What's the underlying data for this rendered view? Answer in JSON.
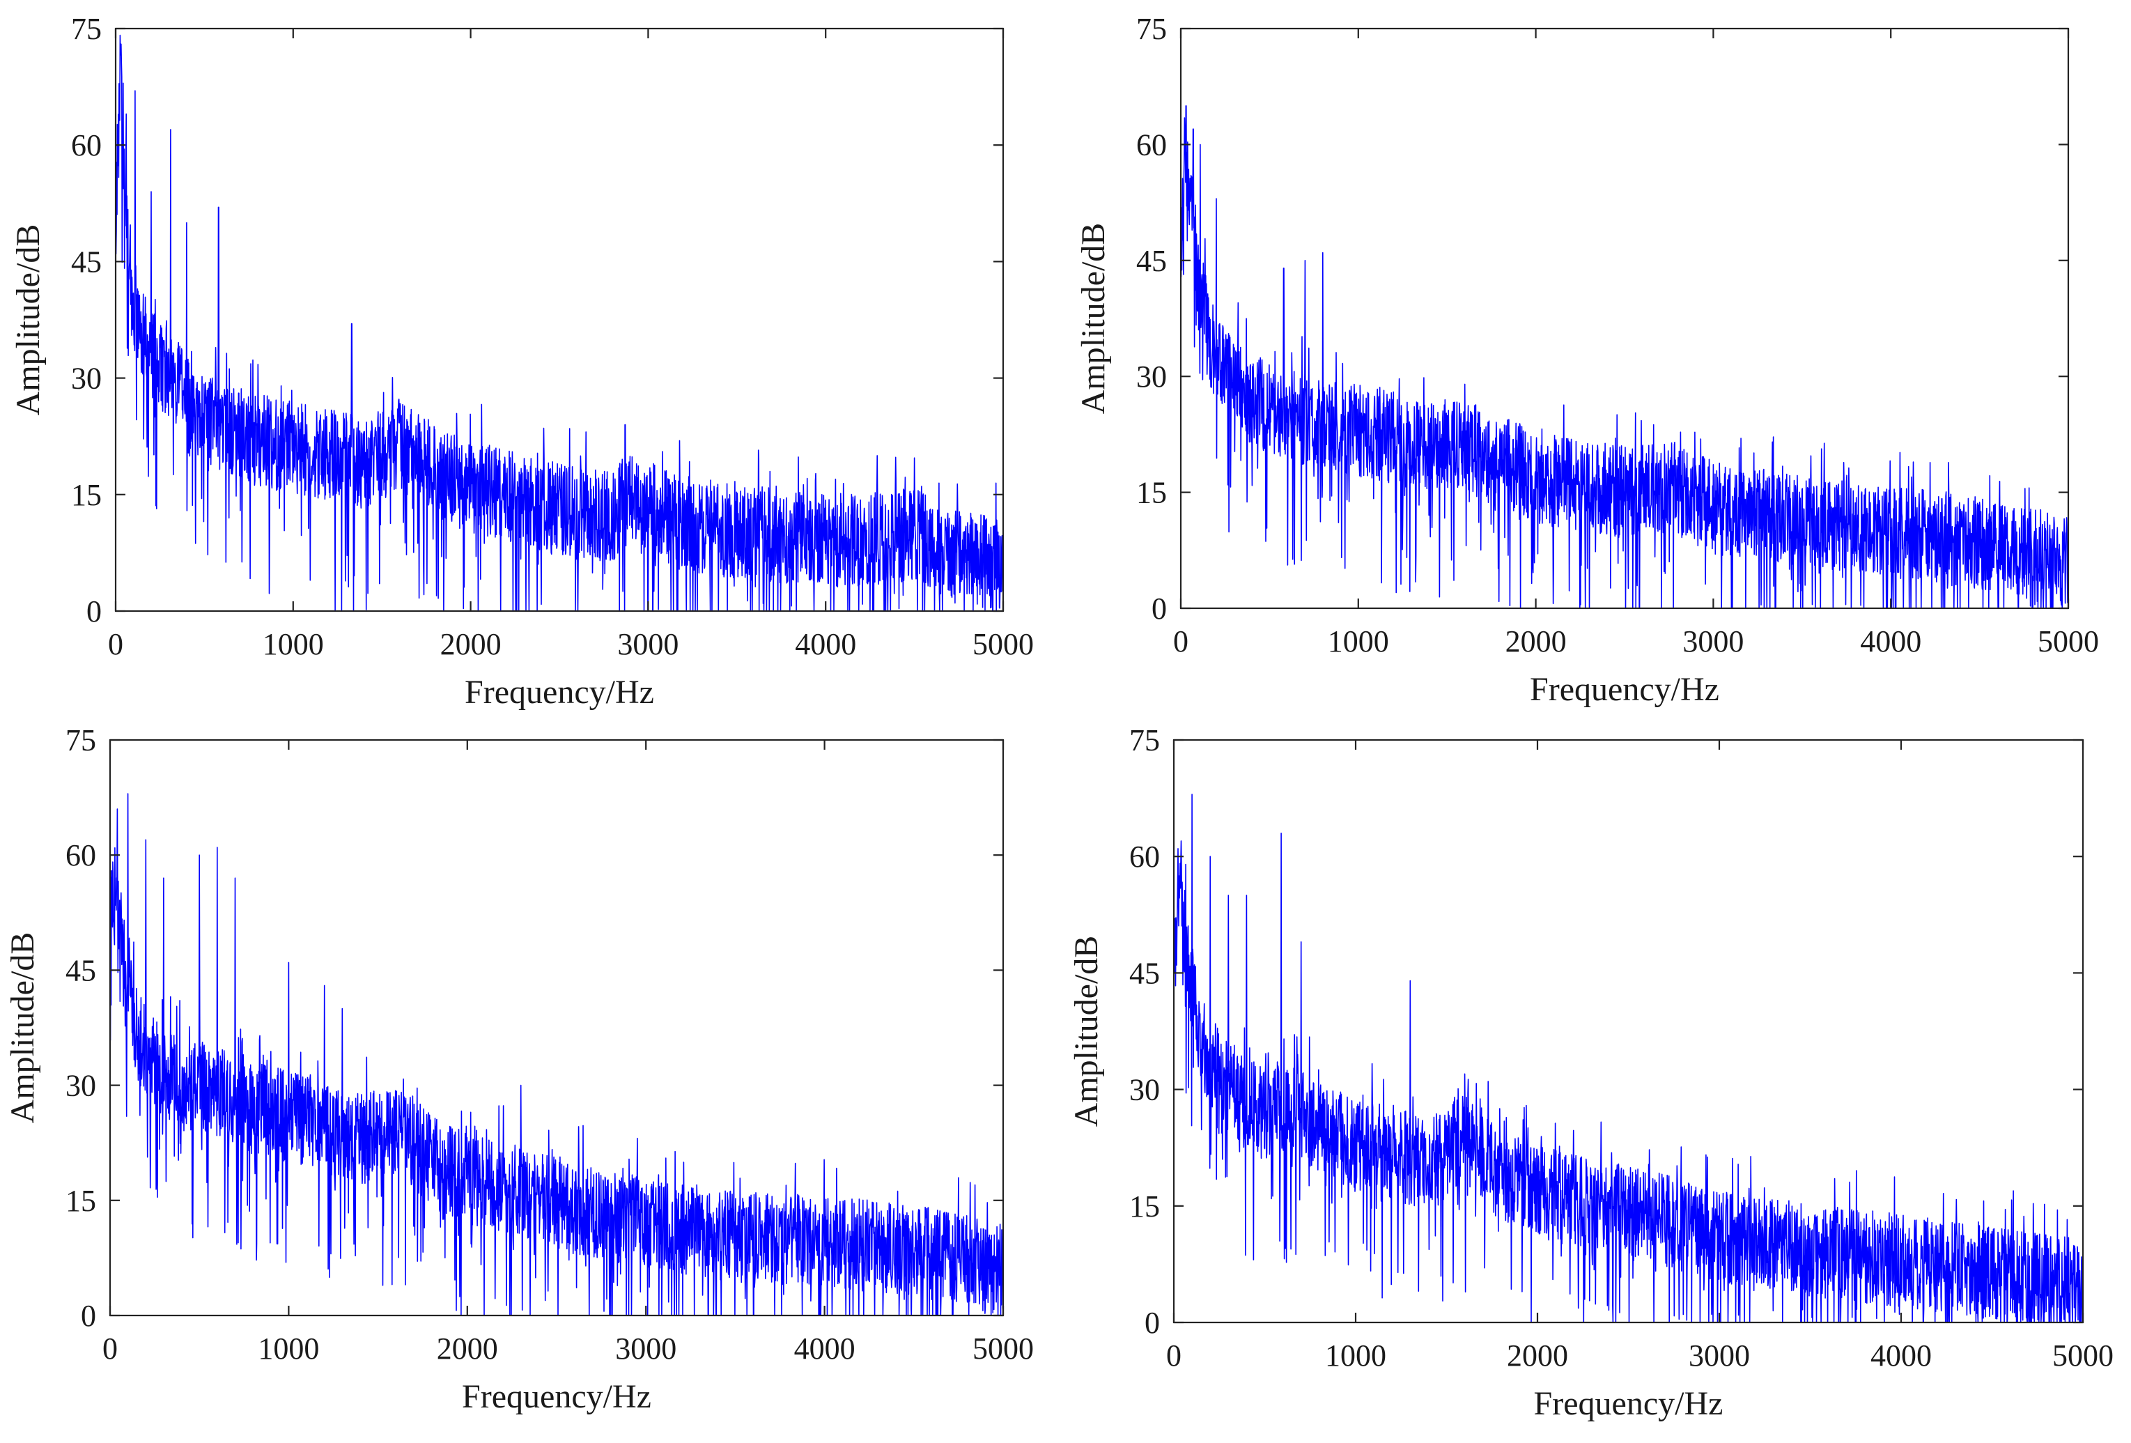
{
  "chart_data": [
    {
      "type": "line",
      "xlabel": "Frequency/Hz",
      "ylabel": "Amplitude/dB",
      "xlim": [
        0,
        5000
      ],
      "ylim": [
        0,
        75
      ],
      "xticks": [
        "0",
        "1000",
        "2000",
        "3000",
        "4000",
        "5000"
      ],
      "yticks": [
        "0",
        "15",
        "30",
        "45",
        "60",
        "75"
      ],
      "grid": false,
      "series_color": "#0000ff",
      "series": [
        {
          "x": [
            0,
            25,
            50,
            100,
            150,
            200,
            300,
            400,
            500,
            600,
            800,
            1000,
            1200,
            1400,
            1650,
            1800,
            2000,
            2200,
            2500,
            2800,
            2900,
            3200,
            3500,
            3800,
            4200,
            4500,
            4700,
            5000
          ],
          "values": [
            50,
            72,
            55,
            40,
            36,
            33,
            30,
            27,
            25,
            24,
            22,
            21,
            20,
            19,
            22,
            18,
            16,
            15,
            13,
            12,
            15,
            11,
            10,
            9.5,
            9,
            10,
            7,
            6
          ],
          "peaks": [
            [
              30,
              73
            ],
            [
              60,
              64
            ],
            [
              110,
              67
            ],
            [
              200,
              54
            ],
            [
              310,
              62
            ],
            [
              400,
              50
            ],
            [
              580,
              52
            ],
            [
              1330,
              37
            ],
            [
              2870,
              24
            ]
          ]
        }
      ]
    },
    {
      "type": "line",
      "xlabel": "Frequency/Hz",
      "ylabel": "Amplitude/dB",
      "xlim": [
        0,
        5000
      ],
      "ylim": [
        0,
        75
      ],
      "xticks": [
        "0",
        "1000",
        "2000",
        "3000",
        "4000",
        "5000"
      ],
      "yticks": [
        "0",
        "15",
        "30",
        "45",
        "60",
        "75"
      ],
      "grid": false,
      "series_color": "#0000ff",
      "series": [
        {
          "x": [
            0,
            25,
            50,
            100,
            150,
            200,
            300,
            400,
            500,
            600,
            800,
            1000,
            1200,
            1400,
            1600,
            1800,
            2000,
            2200,
            2500,
            2750,
            3000,
            3300,
            3600,
            4000,
            4300,
            4600,
            5000
          ],
          "values": [
            45,
            60,
            55,
            42,
            36,
            32,
            29,
            27,
            26,
            25,
            24,
            23,
            22,
            21,
            21,
            19,
            17,
            16,
            15,
            16,
            13,
            12,
            11,
            10,
            9,
            8,
            6
          ],
          "peaks": [
            [
              30,
              65
            ],
            [
              70,
              62
            ],
            [
              110,
              60
            ],
            [
              200,
              53
            ],
            [
              580,
              44
            ],
            [
              700,
              45
            ],
            [
              800,
              46
            ]
          ]
        }
      ]
    },
    {
      "type": "line",
      "xlabel": "Frequency/Hz",
      "ylabel": "Amplitude/dB",
      "xlim": [
        0,
        5000
      ],
      "ylim": [
        0,
        75
      ],
      "xticks": [
        "0",
        "1000",
        "2000",
        "3000",
        "4000",
        "5000"
      ],
      "yticks": [
        "0",
        "15",
        "30",
        "45",
        "60",
        "75"
      ],
      "grid": false,
      "series_color": "#0000ff",
      "series": [
        {
          "x": [
            0,
            25,
            50,
            100,
            150,
            200,
            300,
            400,
            500,
            600,
            800,
            1000,
            1200,
            1400,
            1650,
            1800,
            2000,
            2300,
            2600,
            3000,
            3300,
            3600,
            4000,
            4300,
            4600,
            5000
          ],
          "values": [
            50,
            58,
            52,
            42,
            37,
            34,
            32,
            30,
            30,
            29,
            27,
            26,
            25,
            23,
            24,
            20,
            18,
            16,
            14,
            12,
            11,
            10,
            9.5,
            9,
            8,
            6
          ],
          "peaks": [
            [
              40,
              66
            ],
            [
              100,
              68
            ],
            [
              200,
              62
            ],
            [
              300,
              57
            ],
            [
              500,
              60
            ],
            [
              600,
              61
            ],
            [
              700,
              57
            ],
            [
              1000,
              46
            ],
            [
              1200,
              43
            ],
            [
              1300,
              40
            ],
            [
              2300,
              30
            ]
          ]
        }
      ]
    },
    {
      "type": "line",
      "xlabel": "Frequency/Hz",
      "ylabel": "Amplitude/dB",
      "xlim": [
        0,
        5000
      ],
      "ylim": [
        0,
        75
      ],
      "xticks": [
        "0",
        "1000",
        "2000",
        "3000",
        "4000",
        "5000"
      ],
      "yticks": [
        "0",
        "15",
        "30",
        "45",
        "60",
        "75"
      ],
      "grid": false,
      "series_color": "#0000ff",
      "series": [
        {
          "x": [
            0,
            25,
            50,
            100,
            150,
            200,
            300,
            400,
            500,
            600,
            800,
            1000,
            1200,
            1400,
            1600,
            1800,
            2000,
            2300,
            2600,
            3000,
            3300,
            3600,
            4000,
            4300,
            4600,
            5000
          ],
          "values": [
            45,
            56,
            52,
            43,
            37,
            33,
            30,
            28,
            27,
            28,
            25,
            23,
            22,
            20,
            24,
            19,
            17,
            15,
            14,
            11,
            10,
            9,
            8,
            7,
            6,
            5
          ],
          "peaks": [
            [
              40,
              62
            ],
            [
              100,
              68
            ],
            [
              200,
              60
            ],
            [
              300,
              55
            ],
            [
              400,
              55
            ],
            [
              590,
              63
            ],
            [
              700,
              49
            ],
            [
              1300,
              44
            ],
            [
              1600,
              32
            ]
          ]
        }
      ]
    }
  ]
}
